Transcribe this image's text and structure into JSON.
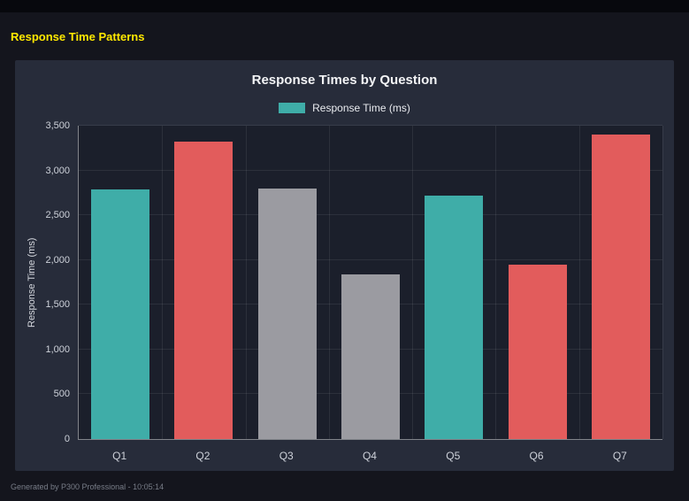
{
  "page": {
    "title": "Response Time Patterns",
    "footer": "Generated by P300 Professional - 10:05:14"
  },
  "chart": {
    "title": "Response Times by Question",
    "legend_label": "Response Time (ms)",
    "y_axis_label": "Response Time (ms)"
  },
  "colors": {
    "teal": "#3fada8",
    "red": "#e25c5c",
    "gray": "#9b9ba1",
    "accent_yellow": "#ffe800",
    "panel_background": "#272c3a",
    "plot_background": "#1b1f2b"
  },
  "chart_data": {
    "type": "bar",
    "title": "Response Times by Question",
    "categories": [
      "Q1",
      "Q2",
      "Q3",
      "Q4",
      "Q5",
      "Q6",
      "Q7"
    ],
    "values": [
      2790,
      3320,
      2800,
      1840,
      2720,
      1950,
      3400
    ],
    "bar_colors": [
      "#3fada8",
      "#e25c5c",
      "#9b9ba1",
      "#9b9ba1",
      "#3fada8",
      "#e25c5c",
      "#e25c5c"
    ],
    "series": [
      {
        "name": "Response Time (ms)",
        "values": [
          2790,
          3320,
          2800,
          1840,
          2720,
          1950,
          3400
        ]
      }
    ],
    "xlabel": "",
    "ylabel": "Response Time (ms)",
    "ylim": [
      0,
      3500
    ],
    "y_ticks": [
      0,
      500,
      1000,
      1500,
      2000,
      2500,
      3000,
      3500
    ],
    "y_tick_labels": [
      "0",
      "500",
      "1,000",
      "1,500",
      "2,000",
      "2,500",
      "3,000",
      "3,500"
    ],
    "legend": [
      "Response Time (ms)"
    ],
    "legend_position": "top",
    "grid": true
  }
}
